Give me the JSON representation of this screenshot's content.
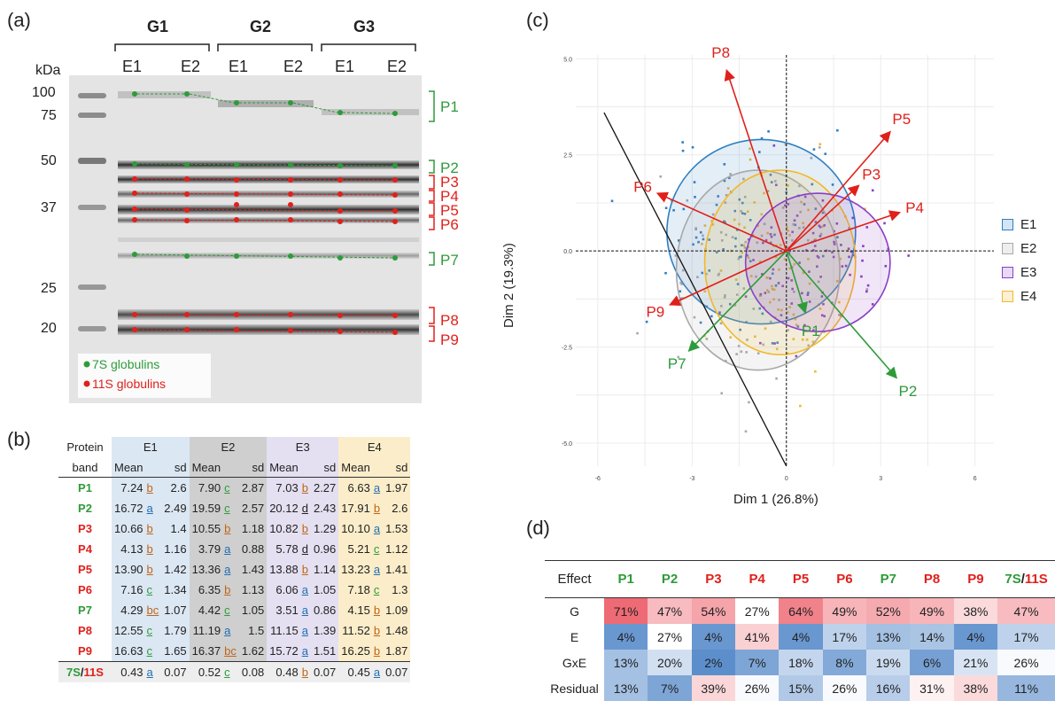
{
  "panel_labels": {
    "a": "(a)",
    "b": "(b)",
    "c": "(c)",
    "d": "(d)"
  },
  "panel_a": {
    "groups": [
      "G1",
      "G2",
      "G3"
    ],
    "lanes": [
      "E1",
      "E2",
      "E1",
      "E2",
      "E1",
      "E2"
    ],
    "kda_title": "kDa",
    "kda_markers": [
      "100",
      "75",
      "50",
      "37",
      "25",
      "20"
    ],
    "bands": [
      "P1",
      "P2",
      "P3",
      "P4",
      "P5",
      "P6",
      "P7",
      "P8",
      "P9"
    ],
    "band_colors": {
      "P1": "#2e9b3a",
      "P2": "#2e9b3a",
      "P3": "#e0201b",
      "P4": "#e0201b",
      "P5": "#e0201b",
      "P6": "#e0201b",
      "P7": "#2e9b3a",
      "P8": "#e0201b",
      "P9": "#e0201b"
    },
    "legend": [
      {
        "label": "7S globulins",
        "color": "#2e9b3a"
      },
      {
        "label": "11S globulins",
        "color": "#e0201b"
      }
    ]
  },
  "table_b": {
    "header_col1": [
      "Protein",
      "band"
    ],
    "envs": [
      "E1",
      "E2",
      "E3",
      "E4"
    ],
    "mean_label": "Mean",
    "sd_label": "sd",
    "rows": [
      {
        "band": "P1",
        "cls": "g",
        "vals": [
          [
            "7.24",
            "b",
            "2.6"
          ],
          [
            "7.90",
            "c",
            "2.87"
          ],
          [
            "7.03",
            "b",
            "2.27"
          ],
          [
            "6.63",
            "a",
            "1.97"
          ]
        ]
      },
      {
        "band": "P2",
        "cls": "g",
        "vals": [
          [
            "16.72",
            "a",
            "2.49"
          ],
          [
            "19.59",
            "c",
            "2.57"
          ],
          [
            "20.12",
            "d",
            "2.43"
          ],
          [
            "17.91",
            "b",
            "2.6"
          ]
        ]
      },
      {
        "band": "P3",
        "cls": "r",
        "vals": [
          [
            "10.66",
            "b",
            "1.4"
          ],
          [
            "10.55",
            "b",
            "1.18"
          ],
          [
            "10.82",
            "b",
            "1.29"
          ],
          [
            "10.10",
            "a",
            "1.53"
          ]
        ]
      },
      {
        "band": "P4",
        "cls": "r",
        "vals": [
          [
            "4.13",
            "b",
            "1.16"
          ],
          [
            "3.79",
            "a",
            "0.88"
          ],
          [
            "5.78",
            "d",
            "0.96"
          ],
          [
            "5.21",
            "c",
            "1.12"
          ]
        ]
      },
      {
        "band": "P5",
        "cls": "r",
        "vals": [
          [
            "13.90",
            "b",
            "1.42"
          ],
          [
            "13.36",
            "a",
            "1.43"
          ],
          [
            "13.88",
            "b",
            "1.14"
          ],
          [
            "13.23",
            "a",
            "1.41"
          ]
        ]
      },
      {
        "band": "P6",
        "cls": "r",
        "vals": [
          [
            "7.16",
            "c",
            "1.34"
          ],
          [
            "6.35",
            "b",
            "1.13"
          ],
          [
            "6.06",
            "a",
            "1.05"
          ],
          [
            "7.18",
            "c",
            "1.3"
          ]
        ]
      },
      {
        "band": "P7",
        "cls": "g",
        "vals": [
          [
            "4.29",
            "bc",
            "1.07"
          ],
          [
            "4.42",
            "c",
            "1.05"
          ],
          [
            "3.51",
            "a",
            "0.86"
          ],
          [
            "4.15",
            "b",
            "1.09"
          ]
        ]
      },
      {
        "band": "P8",
        "cls": "r",
        "vals": [
          [
            "12.55",
            "c",
            "1.79"
          ],
          [
            "11.19",
            "a",
            "1.5"
          ],
          [
            "11.15",
            "a",
            "1.39"
          ],
          [
            "11.52",
            "b",
            "1.48"
          ]
        ]
      },
      {
        "band": "P9",
        "cls": "r",
        "vals": [
          [
            "16.63",
            "c",
            "1.65"
          ],
          [
            "16.37",
            "bc",
            "1.62"
          ],
          [
            "15.72",
            "a",
            "1.51"
          ],
          [
            "16.25",
            "b",
            "1.87"
          ]
        ]
      }
    ],
    "ratio_row": {
      "label_7s": "7S",
      "slash": "/",
      "label_11s": "11S",
      "vals": [
        [
          "0.43",
          "a",
          "0.07"
        ],
        [
          "0.52",
          "c",
          "0.08"
        ],
        [
          "0.48",
          "b",
          "0.07"
        ],
        [
          "0.45",
          "a",
          "0.07"
        ]
      ]
    }
  },
  "panel_c": {
    "xlabel": "Dim 1 (26.8%)",
    "ylabel": "Dim 2 (19.3%)",
    "xticks": [
      "-6",
      "-3",
      "0",
      "3",
      "6"
    ],
    "yticks": [
      "5.0",
      "2.5",
      "0.0",
      "-2.5",
      "-5.0"
    ],
    "legend": [
      {
        "label": "E1",
        "color": "#2f7fc1"
      },
      {
        "label": "E2",
        "color": "#a8a8a8"
      },
      {
        "label": "E3",
        "color": "#8a3fc7"
      },
      {
        "label": "E4",
        "color": "#f2b82a"
      }
    ],
    "arrows": [
      {
        "label": "P1",
        "color": "#2e9b3a",
        "x": 0.6,
        "y": -1.6
      },
      {
        "label": "P2",
        "color": "#2e9b3a",
        "x": 3.5,
        "y": -3.3
      },
      {
        "label": "P3",
        "color": "#e0201b",
        "x": 2.3,
        "y": 1.7
      },
      {
        "label": "P4",
        "color": "#e0201b",
        "x": 3.6,
        "y": 1.0
      },
      {
        "label": "P5",
        "color": "#e0201b",
        "x": 3.3,
        "y": 3.1
      },
      {
        "label": "P6",
        "color": "#e0201b",
        "x": -4.1,
        "y": 1.5
      },
      {
        "label": "P7",
        "color": "#2e9b3a",
        "x": -3.1,
        "y": -2.6
      },
      {
        "label": "P8",
        "color": "#e0201b",
        "x": -1.9,
        "y": 4.7
      },
      {
        "label": "P9",
        "color": "#e0201b",
        "x": -3.7,
        "y": -1.4
      }
    ],
    "ellipses": [
      {
        "env": "E1",
        "cx": -0.8,
        "cy": 0.5,
        "rx": 3.0,
        "ry": 2.4,
        "color": "#2f7fc1"
      },
      {
        "env": "E2",
        "cx": -0.9,
        "cy": -0.5,
        "rx": 2.6,
        "ry": 2.6,
        "color": "#a8a8a8"
      },
      {
        "env": "E4",
        "cx": -0.2,
        "cy": -0.3,
        "rx": 2.4,
        "ry": 2.4,
        "color": "#f2b82a"
      },
      {
        "env": "E3",
        "cx": 1.0,
        "cy": -0.3,
        "rx": 2.3,
        "ry": 1.8,
        "color": "#8a3fc7"
      }
    ]
  },
  "table_d": {
    "effect_header": "Effect",
    "columns": [
      {
        "label": "P1",
        "cls": "g"
      },
      {
        "label": "P2",
        "cls": "g"
      },
      {
        "label": "P3",
        "cls": "r"
      },
      {
        "label": "P4",
        "cls": "r"
      },
      {
        "label": "P5",
        "cls": "r"
      },
      {
        "label": "P6",
        "cls": "r"
      },
      {
        "label": "P7",
        "cls": "g"
      },
      {
        "label": "P8",
        "cls": "r"
      },
      {
        "label": "P9",
        "cls": "r"
      }
    ],
    "ratio_header": {
      "a": "7S",
      "slash": "/",
      "b": "11S"
    },
    "rows": [
      {
        "effect": "G",
        "values": [
          71,
          47,
          54,
          27,
          64,
          49,
          52,
          49,
          38,
          47
        ]
      },
      {
        "effect": "E",
        "values": [
          4,
          27,
          4,
          41,
          4,
          17,
          13,
          14,
          4,
          17
        ]
      },
      {
        "effect": "GxE",
        "values": [
          13,
          20,
          2,
          7,
          18,
          8,
          19,
          6,
          21,
          26
        ]
      },
      {
        "effect": "Residual",
        "values": [
          13,
          7,
          39,
          26,
          15,
          26,
          16,
          31,
          38,
          11
        ]
      }
    ]
  }
}
